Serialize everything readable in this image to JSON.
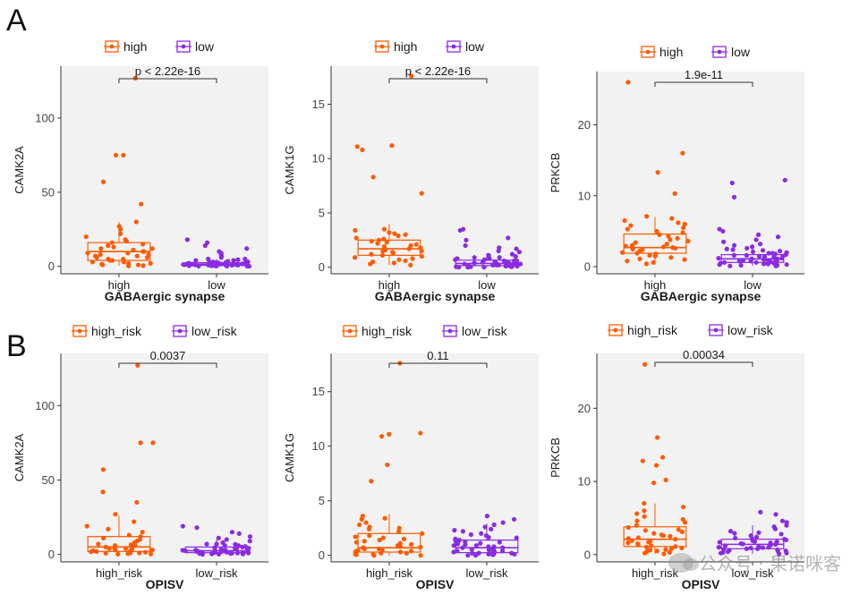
{
  "labels": {
    "row_a": "A",
    "row_b": "B"
  },
  "watermark": "公众号 · 果诺咪客",
  "colors": {
    "high": "#FF5A00",
    "low": "#8A2BE2",
    "panel_bg": "#F2F2F2",
    "axis": "#333333",
    "text": "#1a1a1a"
  },
  "chart_data": [
    {
      "type": "boxplot",
      "row": "A",
      "legend": [
        "high",
        "low"
      ],
      "categories": [
        "high",
        "low"
      ],
      "xlabel": "GABAergic synapse",
      "ylabel": "CAMK2A",
      "ylim": [
        -5,
        135
      ],
      "yticks": [
        0,
        50,
        100
      ],
      "pvalue": "p < 2.22e-16",
      "boxes": [
        {
          "q1": 4,
          "median": 10,
          "q3": 16,
          "whisker_low": 0.5,
          "whisker_high": 30
        },
        {
          "q1": 0.7,
          "median": 1.5,
          "q3": 2.5,
          "whisker_low": 0.1,
          "whisker_high": 5
        }
      ],
      "points": [
        [
          127,
          75,
          75,
          57,
          42,
          30,
          27,
          25,
          22,
          20,
          18,
          17,
          16,
          15,
          14,
          13,
          12,
          12,
          11,
          10,
          10,
          9,
          9,
          8,
          8,
          7,
          7,
          6,
          6,
          5,
          5,
          4,
          4,
          3,
          3,
          2,
          2,
          1.5,
          1,
          1,
          0.5,
          0.3
        ],
        [
          18,
          16,
          14,
          12,
          10,
          9,
          8,
          7,
          6,
          5,
          5,
          4.5,
          4,
          4,
          3.5,
          3,
          3,
          2.8,
          2.5,
          2.4,
          2.2,
          2,
          2,
          1.8,
          1.7,
          1.6,
          1.5,
          1.5,
          1.4,
          1.3,
          1.2,
          1.1,
          1,
          1,
          0.9,
          0.8,
          0.8,
          0.7,
          0.6,
          0.5,
          0.5,
          0.4,
          0.3,
          0.3,
          0.2,
          0.2,
          0.1,
          0.1,
          1.9,
          2.6,
          3.2,
          0.6,
          1.3,
          0.9,
          2.1
        ]
      ]
    },
    {
      "type": "boxplot",
      "row": "A",
      "legend": [
        "high",
        "low"
      ],
      "categories": [
        "high",
        "low"
      ],
      "xlabel": "GABAergic synapse",
      "ylabel": "CAMK1G",
      "ylim": [
        -0.6,
        18.5
      ],
      "yticks": [
        0,
        5,
        10,
        15
      ],
      "pvalue": "p < 2.22e-16",
      "boxes": [
        {
          "q1": 1.1,
          "median": 1.7,
          "q3": 2.5,
          "whisker_low": 0.2,
          "whisker_high": 4
        },
        {
          "q1": 0.15,
          "median": 0.35,
          "q3": 0.65,
          "whisker_low": 0.0,
          "whisker_high": 1.3
        }
      ],
      "points": [
        [
          17.6,
          11.2,
          11.1,
          10.8,
          8.3,
          6.8,
          3.5,
          3.4,
          3.2,
          3.1,
          3.0,
          2.9,
          2.7,
          2.6,
          2.5,
          2.4,
          2.3,
          2.2,
          2.1,
          2.0,
          1.9,
          1.8,
          1.8,
          1.7,
          1.6,
          1.5,
          1.5,
          1.4,
          1.3,
          1.2,
          1.1,
          1.0,
          0.9,
          0.8,
          0.7,
          0.6,
          0.5,
          0.4,
          0.3,
          0.2
        ],
        [
          3.5,
          3.4,
          2.7,
          2.5,
          2.0,
          1.8,
          1.7,
          1.5,
          1.4,
          1.2,
          1.1,
          1.0,
          1.0,
          0.9,
          0.9,
          0.8,
          0.7,
          0.7,
          0.6,
          0.6,
          0.5,
          0.5,
          0.5,
          0.4,
          0.4,
          0.4,
          0.3,
          0.3,
          0.3,
          0.3,
          0.2,
          0.2,
          0.2,
          0.2,
          0.1,
          0.1,
          0.1,
          0.1,
          0.05,
          0.05,
          0.05,
          0.0,
          0.0,
          0.0,
          0.3,
          0.6,
          0.8,
          0.45,
          0.25,
          0.15
        ]
      ]
    },
    {
      "type": "boxplot",
      "row": "A",
      "legend": [
        "high",
        "low"
      ],
      "categories": [
        "high",
        "low"
      ],
      "xlabel": "GABAergic synapse",
      "ylabel": "PRKCB",
      "ylim": [
        -1,
        27.5
      ],
      "yticks": [
        0,
        10,
        20
      ],
      "pvalue": "1.9e-11",
      "boxes": [
        {
          "q1": 1.9,
          "median": 2.7,
          "q3": 4.6,
          "whisker_low": 0.3,
          "whisker_high": 7
        },
        {
          "q1": 0.6,
          "median": 1.1,
          "q3": 1.7,
          "whisker_low": 0.1,
          "whisker_high": 3.2
        }
      ],
      "points": [
        [
          26,
          16,
          13.3,
          10.3,
          7.1,
          6.8,
          6.5,
          6.2,
          6.0,
          5.8,
          5.5,
          5.3,
          5.0,
          4.8,
          4.5,
          4.3,
          4.0,
          3.8,
          3.6,
          3.4,
          3.2,
          3.0,
          2.9,
          2.8,
          2.7,
          2.6,
          2.5,
          2.4,
          2.2,
          2.0,
          1.9,
          1.8,
          1.6,
          1.5,
          1.3,
          1.1,
          1.0,
          0.8,
          0.6,
          0.4
        ],
        [
          12.2,
          11.8,
          9.8,
          5.3,
          5.0,
          4.5,
          4.2,
          3.8,
          3.5,
          3.2,
          3.0,
          2.8,
          2.5,
          2.4,
          2.3,
          2.1,
          2.0,
          1.9,
          1.8,
          1.7,
          1.6,
          1.5,
          1.5,
          1.4,
          1.3,
          1.2,
          1.2,
          1.1,
          1.0,
          1.0,
          0.9,
          0.8,
          0.8,
          0.7,
          0.6,
          0.6,
          0.5,
          0.4,
          0.4,
          0.3,
          0.3,
          0.2,
          0.2,
          0.1,
          0.1,
          1.6,
          0.9,
          2.6,
          1.3,
          0.7,
          2.2,
          1.9,
          0.5,
          1.1
        ]
      ]
    },
    {
      "type": "boxplot",
      "row": "B",
      "legend": [
        "high_risk",
        "low_risk"
      ],
      "categories": [
        "high_risk",
        "low_risk"
      ],
      "xlabel": "OPISV",
      "ylabel": "CAMK2A",
      "ylim": [
        -5,
        135
      ],
      "yticks": [
        0,
        50,
        100
      ],
      "pvalue": "0.0037",
      "boxes": [
        {
          "q1": 2,
          "median": 5,
          "q3": 12,
          "whisker_low": 0.1,
          "whisker_high": 26
        },
        {
          "q1": 1.2,
          "median": 2.5,
          "q3": 5,
          "whisker_low": 0.1,
          "whisker_high": 10
        }
      ],
      "points": [
        [
          127,
          75,
          75,
          57,
          42,
          35,
          27,
          22,
          19,
          17,
          15,
          13,
          12,
          11,
          10,
          9,
          8,
          7,
          6,
          6,
          5,
          5,
          4,
          4,
          3.5,
          3,
          3,
          2.5,
          2,
          2,
          1.5,
          1,
          1,
          0.8,
          0.5,
          0.3,
          0.2,
          3,
          4.5,
          6.5,
          1.8
        ],
        [
          19,
          18,
          15,
          14,
          12,
          11,
          10,
          9,
          8,
          7,
          7,
          6,
          6,
          5,
          5,
          4.5,
          4,
          4,
          3.5,
          3,
          3,
          2.8,
          2.5,
          2.2,
          2,
          2,
          1.8,
          1.5,
          1.5,
          1.2,
          1,
          1,
          0.8,
          0.6,
          0.5,
          0.4,
          0.3,
          0.2,
          0.1,
          2.4,
          3.2,
          1.1,
          4.2,
          0.9,
          6.8,
          5.4
        ]
      ]
    },
    {
      "type": "boxplot",
      "row": "B",
      "legend": [
        "high_risk",
        "low_risk"
      ],
      "categories": [
        "high_risk",
        "low_risk"
      ],
      "xlabel": "OPISV",
      "ylabel": "CAMK1G",
      "ylim": [
        -0.6,
        18.5
      ],
      "yticks": [
        0,
        5,
        10,
        15
      ],
      "pvalue": "0.11",
      "boxes": [
        {
          "q1": 0.3,
          "median": 0.7,
          "q3": 2.0,
          "whisker_low": 0.0,
          "whisker_high": 3.8
        },
        {
          "q1": 0.25,
          "median": 0.7,
          "q3": 1.4,
          "whisker_low": 0.0,
          "whisker_high": 2.9
        }
      ],
      "points": [
        [
          17.6,
          11.2,
          11.1,
          10.9,
          8.3,
          6.8,
          3.6,
          3.4,
          3.3,
          3.0,
          2.8,
          2.6,
          2.4,
          2.2,
          2.0,
          1.8,
          1.6,
          1.5,
          1.3,
          1.2,
          1.1,
          1.0,
          0.9,
          0.8,
          0.7,
          0.6,
          0.6,
          0.5,
          0.4,
          0.4,
          0.3,
          0.3,
          0.2,
          0.2,
          0.1,
          0.1,
          0.05,
          0.0,
          0.0,
          1.7,
          2.5,
          0.75,
          1.4,
          0.45
        ],
        [
          3.6,
          3.3,
          3.0,
          2.8,
          2.6,
          2.4,
          2.2,
          2.0,
          1.9,
          1.8,
          1.6,
          1.5,
          1.4,
          1.3,
          1.2,
          1.1,
          1.0,
          0.9,
          0.9,
          0.8,
          0.8,
          0.7,
          0.7,
          0.6,
          0.6,
          0.5,
          0.5,
          0.4,
          0.4,
          0.3,
          0.3,
          0.2,
          0.2,
          0.2,
          0.1,
          0.1,
          0.1,
          0.05,
          0.0,
          0.0,
          1.05,
          1.65,
          0.55,
          2.3,
          1.25,
          0.35
        ]
      ]
    },
    {
      "type": "boxplot",
      "row": "B",
      "legend": [
        "high_risk",
        "low_risk"
      ],
      "categories": [
        "high_risk",
        "low_risk"
      ],
      "xlabel": "OPISV",
      "ylabel": "PRKCB",
      "ylim": [
        -1,
        27.5
      ],
      "yticks": [
        0,
        10,
        20
      ],
      "pvalue": "0.00034",
      "boxes": [
        {
          "q1": 1.1,
          "median": 2.1,
          "q3": 3.8,
          "whisker_low": 0.1,
          "whisker_high": 7
        },
        {
          "q1": 0.8,
          "median": 1.4,
          "q3": 2.1,
          "whisker_low": 0.1,
          "whisker_high": 4
        }
      ],
      "points": [
        [
          26,
          16,
          13.3,
          12.8,
          12.2,
          10.2,
          9.8,
          7.0,
          6.5,
          6.0,
          5.6,
          5.2,
          4.8,
          4.4,
          4.0,
          3.7,
          3.4,
          3.1,
          2.9,
          2.7,
          2.5,
          2.3,
          2.1,
          1.9,
          1.7,
          1.5,
          1.4,
          1.2,
          1.1,
          1.0,
          0.9,
          0.8,
          0.6,
          0.5,
          0.4,
          0.3,
          0.2,
          0.1,
          1.6,
          2.6,
          3.3,
          0.7,
          1.8,
          4.6,
          2.2
        ],
        [
          5.8,
          5.5,
          4.6,
          4.4,
          4.0,
          3.8,
          3.5,
          3.2,
          3.0,
          2.8,
          2.6,
          2.4,
          2.2,
          2.1,
          2.0,
          1.9,
          1.8,
          1.7,
          1.6,
          1.5,
          1.4,
          1.3,
          1.2,
          1.1,
          1.0,
          1.0,
          0.9,
          0.8,
          0.8,
          0.7,
          0.6,
          0.5,
          0.5,
          0.4,
          0.3,
          0.2,
          0.2,
          0.1,
          1.45,
          2.25,
          0.95,
          1.75,
          0.65,
          2.9
        ]
      ]
    }
  ]
}
